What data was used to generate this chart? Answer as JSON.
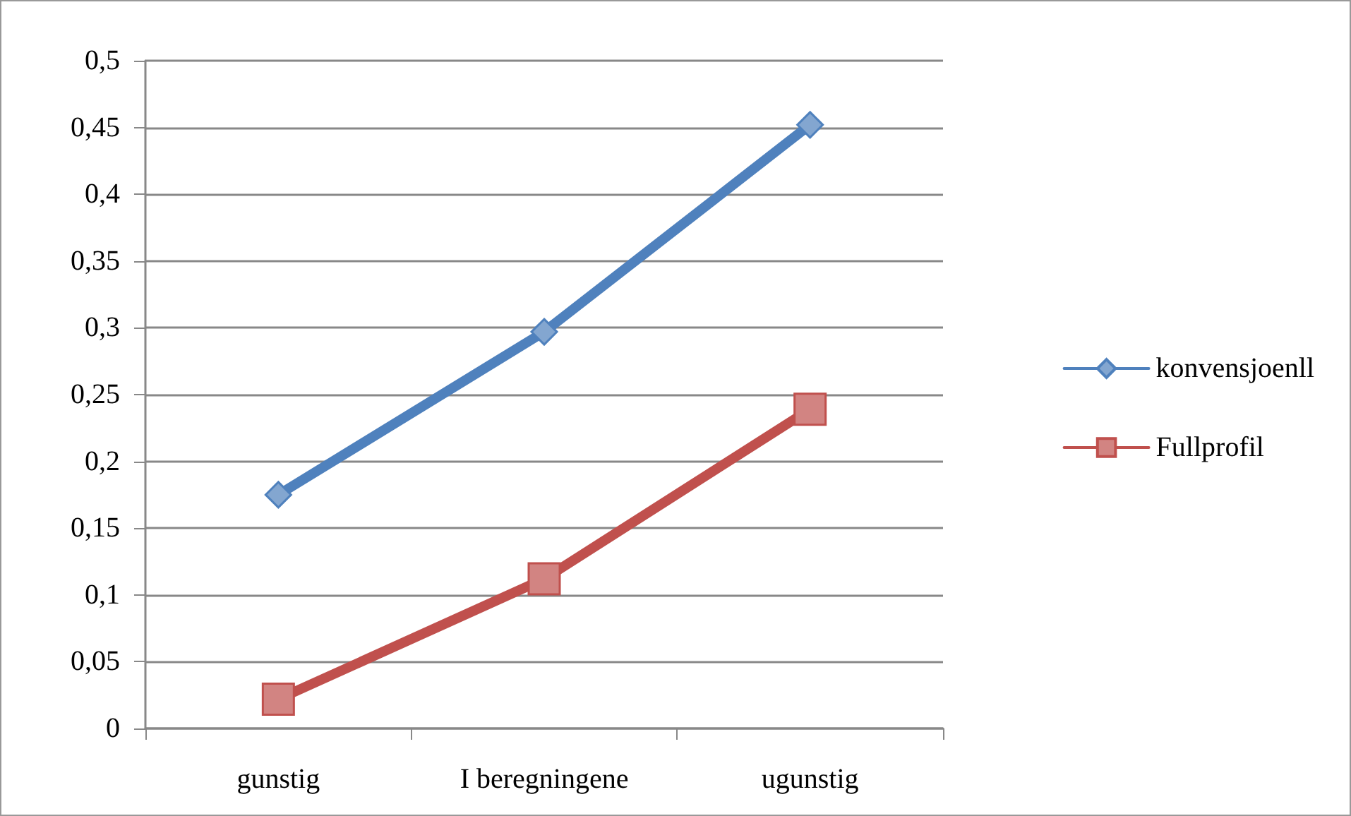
{
  "chart_data": {
    "type": "line",
    "categories": [
      "gunstig",
      "I beregningene",
      "ugunstig"
    ],
    "series": [
      {
        "name": "konvensjoenll",
        "color": "#4f81bd",
        "marker": "diamond",
        "values": [
          0.175,
          0.297,
          0.452
        ]
      },
      {
        "name": "Fullprofil",
        "color": "#c0504d",
        "marker": "square",
        "values": [
          0.022,
          0.112,
          0.239
        ]
      }
    ],
    "ylim": [
      0,
      0.5
    ],
    "yticks": [
      {
        "value": 0,
        "label": "0"
      },
      {
        "value": 0.05,
        "label": "0,05"
      },
      {
        "value": 0.1,
        "label": "0,1"
      },
      {
        "value": 0.15,
        "label": "0,15"
      },
      {
        "value": 0.2,
        "label": "0,2"
      },
      {
        "value": 0.25,
        "label": "0,25"
      },
      {
        "value": 0.3,
        "label": "0,3"
      },
      {
        "value": 0.35,
        "label": "0,35"
      },
      {
        "value": 0.4,
        "label": "0,4"
      },
      {
        "value": 0.45,
        "label": "0,45"
      },
      {
        "value": 0.5,
        "label": "0,5"
      }
    ],
    "grid": "y",
    "legend": "right",
    "line_style": "solid"
  }
}
